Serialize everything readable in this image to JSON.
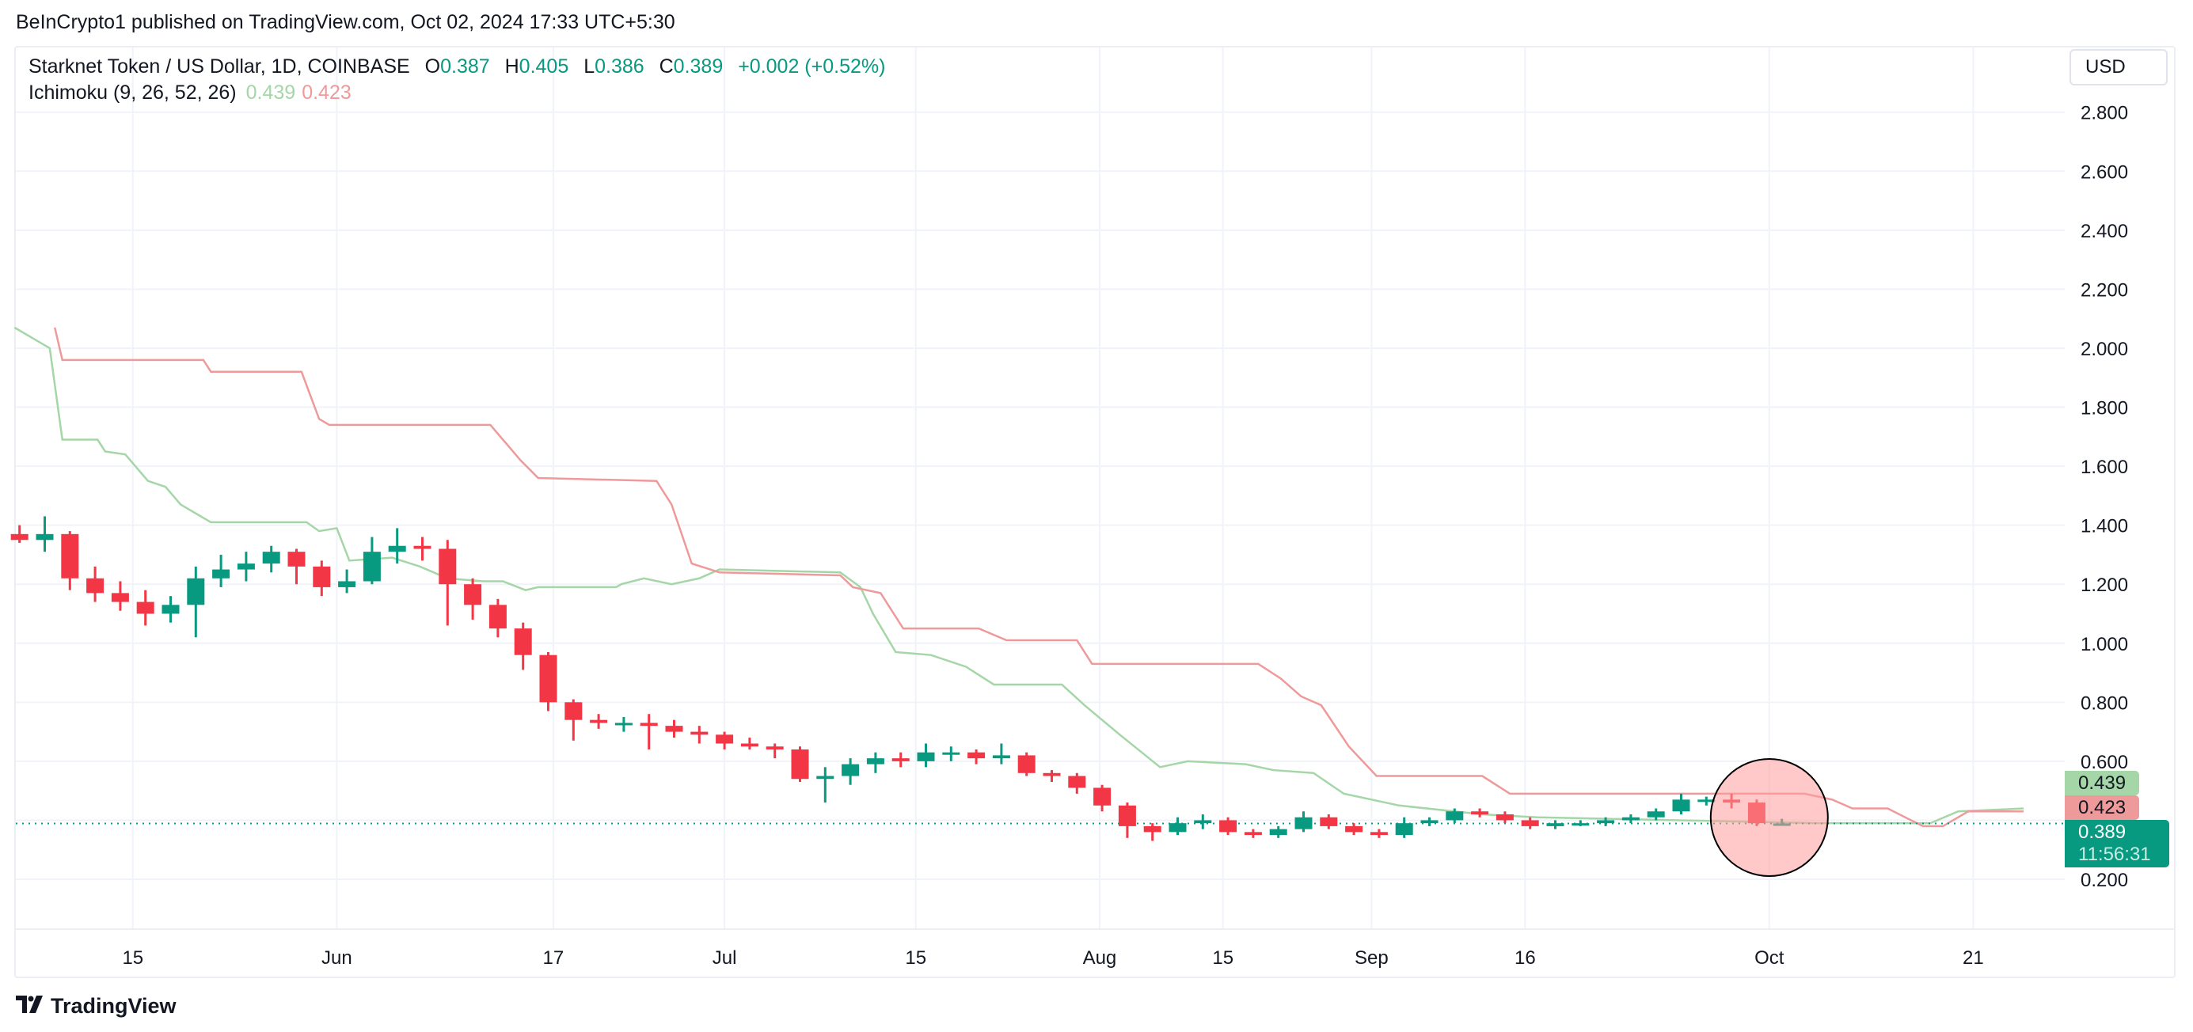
{
  "publisher": "BeInCrypto1 published on TradingView.com, Oct 02, 2024 17:33 UTC+5:30",
  "legend": {
    "symbol": "Starknet Token / US Dollar, 1D, COINBASE",
    "o_label": "O",
    "o": "0.387",
    "h_label": "H",
    "h": "0.405",
    "l_label": "L",
    "l": "0.386",
    "c_label": "C",
    "c": "0.389",
    "change": "+0.002 (+0.52%)",
    "indicator": "Ichimoku (9, 26, 52, 26)",
    "ind_a": "0.439",
    "ind_b": "0.423"
  },
  "currency": "USD",
  "tags": {
    "span_a": "0.439",
    "span_b": "0.423",
    "price": "0.389",
    "countdown": "11:56:31"
  },
  "footer": {
    "logo": "TradingView"
  },
  "colors": {
    "up": "#089981",
    "down": "#f23645",
    "span_a": "#a5d6a7",
    "span_b": "#ef9a9a",
    "highlight": "#ff9d9d"
  },
  "chart_data": {
    "type": "candlestick",
    "title": "Starknet Token / US Dollar, 1D, COINBASE",
    "ylim": [
      0.2,
      2.8
    ],
    "yticks": [
      "2.800",
      "2.600",
      "2.400",
      "2.200",
      "2.000",
      "1.800",
      "1.600",
      "1.400",
      "1.200",
      "1.000",
      "0.800",
      "0.600",
      "0.200"
    ],
    "ytick_values": [
      2.8,
      2.6,
      2.4,
      2.2,
      2.0,
      1.8,
      1.6,
      1.4,
      1.2,
      1.0,
      0.8,
      0.6,
      0.2
    ],
    "xticks": [
      {
        "label": "15",
        "bar": 4.5
      },
      {
        "label": "Jun",
        "bar": 12.6
      },
      {
        "label": "17",
        "bar": 21.2
      },
      {
        "label": "Jul",
        "bar": 28
      },
      {
        "label": "15",
        "bar": 35.6
      },
      {
        "label": "Aug",
        "bar": 42.9
      },
      {
        "label": "15",
        "bar": 47.8
      },
      {
        "label": "Sep",
        "bar": 53.7
      },
      {
        "label": "16",
        "bar": 59.8
      },
      {
        "label": "Oct",
        "bar": 69.5
      },
      {
        "label": "21",
        "bar": 77.6
      }
    ],
    "last_price": 0.389,
    "highlight_bar": 69.5,
    "ohlc": [
      [
        1.37,
        1.4,
        1.34,
        1.35
      ],
      [
        1.35,
        1.43,
        1.31,
        1.37
      ],
      [
        1.37,
        1.38,
        1.18,
        1.22
      ],
      [
        1.22,
        1.26,
        1.14,
        1.17
      ],
      [
        1.17,
        1.21,
        1.11,
        1.14
      ],
      [
        1.14,
        1.18,
        1.06,
        1.1
      ],
      [
        1.1,
        1.16,
        1.07,
        1.13
      ],
      [
        1.13,
        1.26,
        1.02,
        1.22
      ],
      [
        1.22,
        1.3,
        1.19,
        1.25
      ],
      [
        1.25,
        1.31,
        1.21,
        1.27
      ],
      [
        1.27,
        1.33,
        1.24,
        1.31
      ],
      [
        1.31,
        1.32,
        1.2,
        1.26
      ],
      [
        1.26,
        1.28,
        1.16,
        1.19
      ],
      [
        1.19,
        1.25,
        1.17,
        1.21
      ],
      [
        1.21,
        1.36,
        1.2,
        1.31
      ],
      [
        1.31,
        1.39,
        1.27,
        1.33
      ],
      [
        1.33,
        1.36,
        1.28,
        1.32
      ],
      [
        1.32,
        1.35,
        1.06,
        1.2
      ],
      [
        1.2,
        1.22,
        1.08,
        1.13
      ],
      [
        1.13,
        1.15,
        1.02,
        1.05
      ],
      [
        1.05,
        1.07,
        0.91,
        0.96
      ],
      [
        0.96,
        0.97,
        0.77,
        0.8
      ],
      [
        0.8,
        0.81,
        0.67,
        0.74
      ],
      [
        0.74,
        0.76,
        0.71,
        0.73
      ],
      [
        0.73,
        0.75,
        0.7,
        0.73
      ],
      [
        0.73,
        0.76,
        0.64,
        0.72
      ],
      [
        0.72,
        0.74,
        0.68,
        0.7
      ],
      [
        0.7,
        0.72,
        0.66,
        0.69
      ],
      [
        0.69,
        0.7,
        0.64,
        0.66
      ],
      [
        0.66,
        0.68,
        0.64,
        0.65
      ],
      [
        0.65,
        0.66,
        0.61,
        0.64
      ],
      [
        0.64,
        0.65,
        0.53,
        0.54
      ],
      [
        0.54,
        0.58,
        0.46,
        0.55
      ],
      [
        0.55,
        0.61,
        0.52,
        0.59
      ],
      [
        0.59,
        0.63,
        0.56,
        0.61
      ],
      [
        0.61,
        0.63,
        0.58,
        0.6
      ],
      [
        0.6,
        0.66,
        0.58,
        0.63
      ],
      [
        0.63,
        0.65,
        0.6,
        0.63
      ],
      [
        0.63,
        0.64,
        0.59,
        0.61
      ],
      [
        0.61,
        0.66,
        0.59,
        0.62
      ],
      [
        0.62,
        0.63,
        0.55,
        0.56
      ],
      [
        0.56,
        0.57,
        0.53,
        0.55
      ],
      [
        0.55,
        0.56,
        0.49,
        0.51
      ],
      [
        0.51,
        0.52,
        0.43,
        0.45
      ],
      [
        0.45,
        0.46,
        0.34,
        0.38
      ],
      [
        0.38,
        0.39,
        0.33,
        0.36
      ],
      [
        0.36,
        0.41,
        0.35,
        0.39
      ],
      [
        0.39,
        0.42,
        0.37,
        0.4
      ],
      [
        0.4,
        0.41,
        0.35,
        0.36
      ],
      [
        0.36,
        0.37,
        0.34,
        0.35
      ],
      [
        0.35,
        0.38,
        0.34,
        0.37
      ],
      [
        0.37,
        0.43,
        0.36,
        0.41
      ],
      [
        0.41,
        0.42,
        0.37,
        0.38
      ],
      [
        0.38,
        0.39,
        0.35,
        0.36
      ],
      [
        0.36,
        0.37,
        0.34,
        0.35
      ],
      [
        0.35,
        0.41,
        0.34,
        0.39
      ],
      [
        0.39,
        0.41,
        0.38,
        0.4
      ],
      [
        0.4,
        0.44,
        0.39,
        0.43
      ],
      [
        0.43,
        0.44,
        0.41,
        0.42
      ],
      [
        0.42,
        0.43,
        0.39,
        0.4
      ],
      [
        0.4,
        0.41,
        0.37,
        0.38
      ],
      [
        0.38,
        0.4,
        0.37,
        0.39
      ],
      [
        0.39,
        0.4,
        0.38,
        0.39
      ],
      [
        0.39,
        0.41,
        0.38,
        0.4
      ],
      [
        0.4,
        0.42,
        0.39,
        0.41
      ],
      [
        0.41,
        0.44,
        0.4,
        0.43
      ],
      [
        0.43,
        0.49,
        0.42,
        0.47
      ],
      [
        0.47,
        0.48,
        0.45,
        0.47
      ],
      [
        0.47,
        0.49,
        0.44,
        0.46
      ],
      [
        0.46,
        0.47,
        0.38,
        0.39
      ],
      [
        0.387,
        0.405,
        0.386,
        0.389
      ]
    ],
    "series": [
      {
        "name": "Ichimoku span A",
        "color": "#a5d6a7",
        "points": [
          [
            -0.2,
            2.07
          ],
          [
            1.2,
            2.0
          ],
          [
            1.7,
            1.69
          ],
          [
            3.1,
            1.69
          ],
          [
            3.4,
            1.65
          ],
          [
            4.2,
            1.64
          ],
          [
            5.1,
            1.55
          ],
          [
            5.8,
            1.53
          ],
          [
            6.4,
            1.47
          ],
          [
            7.6,
            1.41
          ],
          [
            11.4,
            1.41
          ],
          [
            11.9,
            1.38
          ],
          [
            12.6,
            1.39
          ],
          [
            13.1,
            1.28
          ],
          [
            14.8,
            1.29
          ],
          [
            15.9,
            1.26
          ],
          [
            17,
            1.22
          ],
          [
            18.4,
            1.21
          ],
          [
            19.2,
            1.21
          ],
          [
            20.1,
            1.18
          ],
          [
            20.6,
            1.19
          ],
          [
            23.7,
            1.19
          ],
          [
            23.9,
            1.2
          ],
          [
            24.8,
            1.22
          ],
          [
            25.9,
            1.2
          ],
          [
            27,
            1.22
          ],
          [
            27.8,
            1.25
          ],
          [
            32.6,
            1.24
          ],
          [
            33.4,
            1.19
          ],
          [
            33.9,
            1.1
          ],
          [
            34.8,
            0.97
          ],
          [
            36.2,
            0.96
          ],
          [
            37.6,
            0.92
          ],
          [
            38.7,
            0.86
          ],
          [
            41.4,
            0.86
          ],
          [
            42.3,
            0.79
          ],
          [
            43.7,
            0.69
          ],
          [
            45.3,
            0.58
          ],
          [
            46.4,
            0.6
          ],
          [
            48.7,
            0.59
          ],
          [
            49.8,
            0.57
          ],
          [
            51.4,
            0.56
          ],
          [
            52.6,
            0.49
          ],
          [
            54.8,
            0.45
          ],
          [
            58.1,
            0.42
          ],
          [
            60.3,
            0.41
          ],
          [
            65.9,
            0.4
          ],
          [
            71.4,
            0.39
          ],
          [
            75.9,
            0.39
          ],
          [
            77,
            0.43
          ],
          [
            79.6,
            0.44
          ]
        ]
      },
      {
        "name": "Ichimoku span B",
        "color": "#ef9a9a",
        "points": [
          [
            1.4,
            2.07
          ],
          [
            1.7,
            1.96
          ],
          [
            7.3,
            1.96
          ],
          [
            7.6,
            1.92
          ],
          [
            11.2,
            1.92
          ],
          [
            11.9,
            1.76
          ],
          [
            12.3,
            1.74
          ],
          [
            18.7,
            1.74
          ],
          [
            19.5,
            1.66
          ],
          [
            19.9,
            1.62
          ],
          [
            20.6,
            1.56
          ],
          [
            25.3,
            1.55
          ],
          [
            25.9,
            1.47
          ],
          [
            26.7,
            1.27
          ],
          [
            27.8,
            1.24
          ],
          [
            32.6,
            1.23
          ],
          [
            33.1,
            1.19
          ],
          [
            34.2,
            1.17
          ],
          [
            35.1,
            1.05
          ],
          [
            38.1,
            1.05
          ],
          [
            39.2,
            1.01
          ],
          [
            42,
            1.01
          ],
          [
            42.6,
            0.93
          ],
          [
            49.2,
            0.93
          ],
          [
            50.1,
            0.88
          ],
          [
            50.9,
            0.82
          ],
          [
            51.7,
            0.79
          ],
          [
            52.8,
            0.65
          ],
          [
            53.9,
            0.55
          ],
          [
            58.1,
            0.55
          ],
          [
            59.2,
            0.49
          ],
          [
            70.9,
            0.49
          ],
          [
            72,
            0.47
          ],
          [
            72.8,
            0.44
          ],
          [
            74.2,
            0.44
          ],
          [
            75.6,
            0.38
          ],
          [
            76.4,
            0.38
          ],
          [
            77.4,
            0.43
          ],
          [
            79.6,
            0.43
          ]
        ]
      }
    ]
  }
}
